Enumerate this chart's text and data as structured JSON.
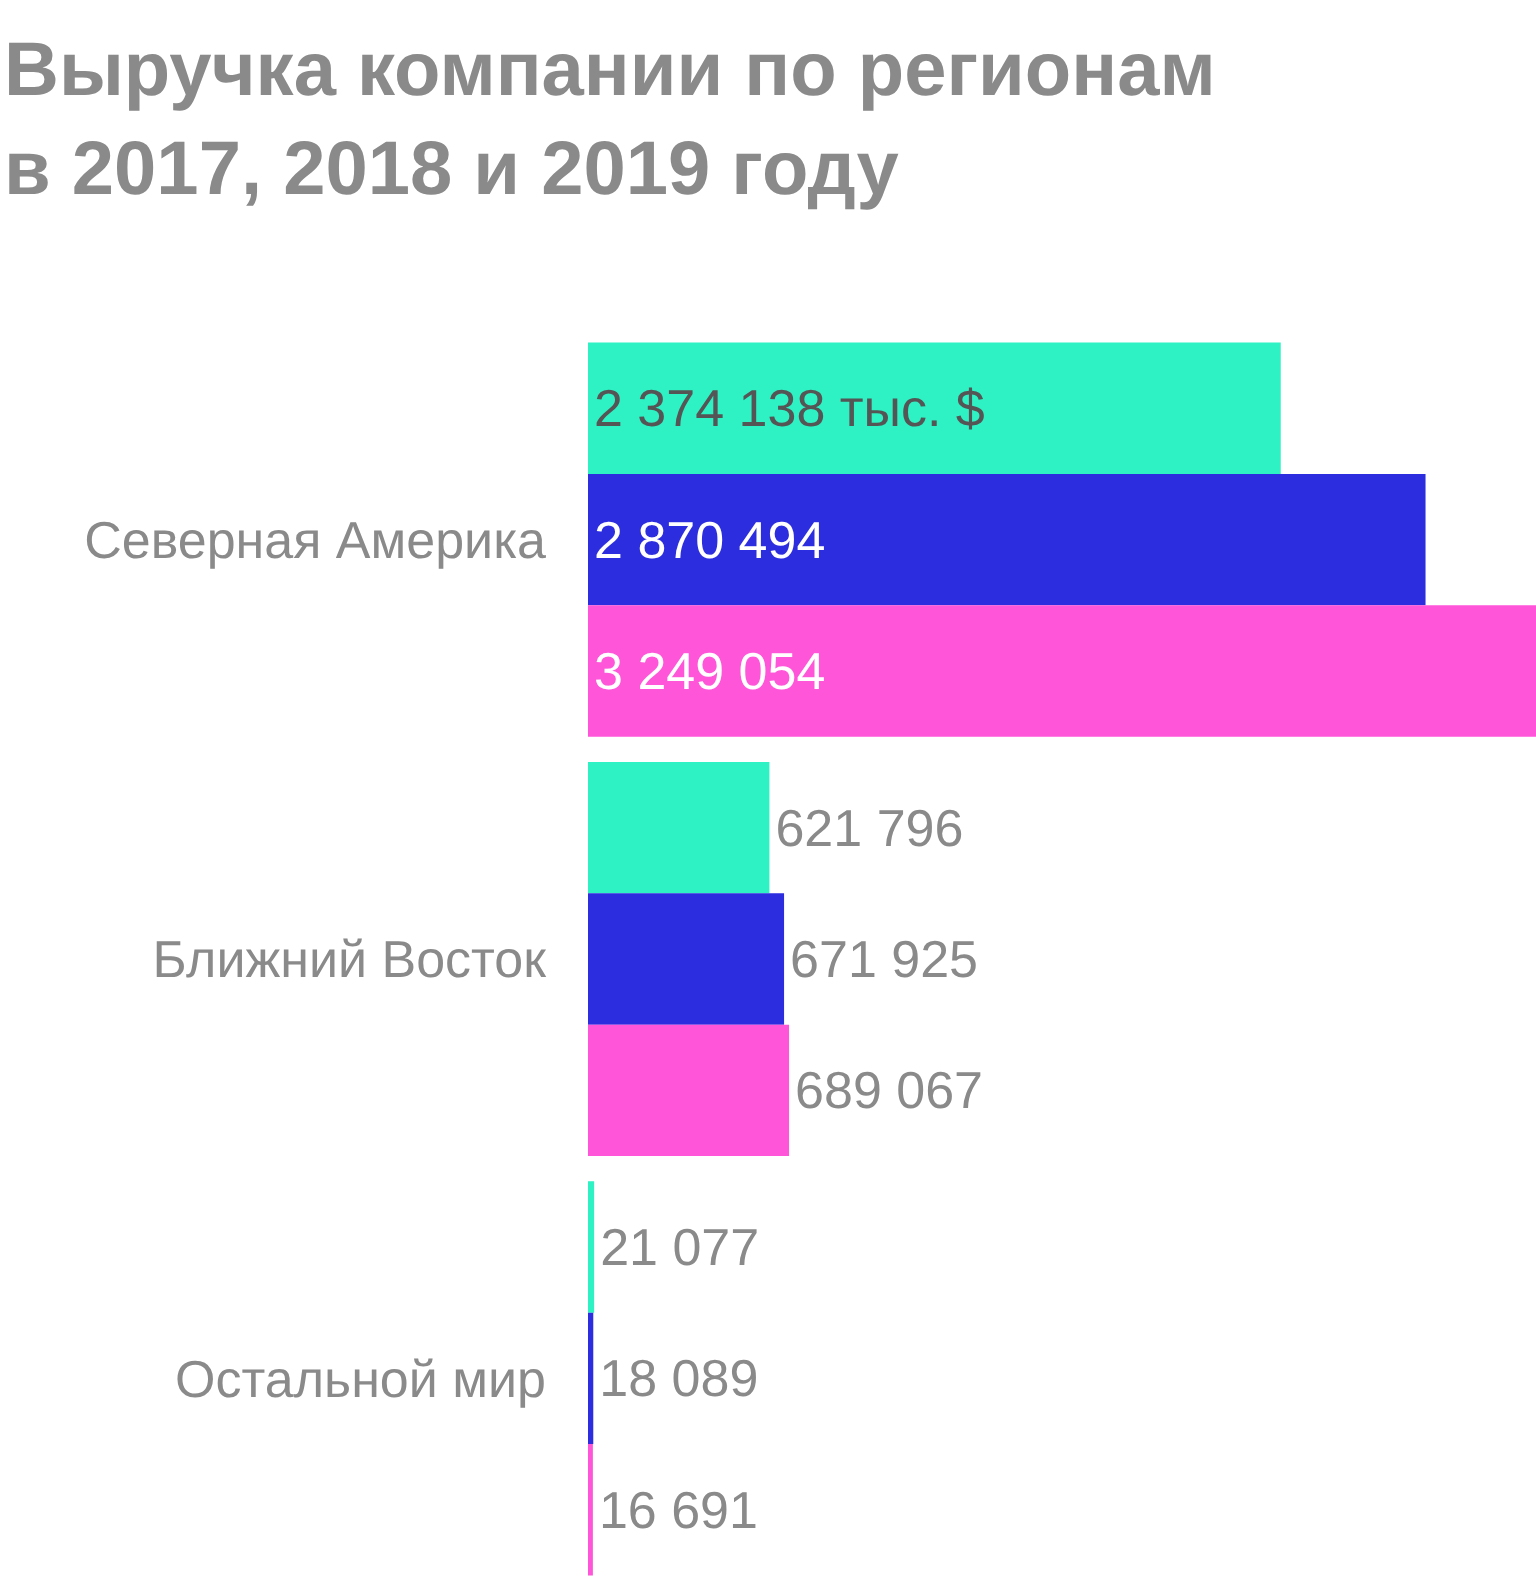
{
  "chart_data": {
    "type": "bar",
    "orientation": "horizontal",
    "title": "Выручка компании по регионам",
    "subtitle": "в 2017, 2018 и 2019 году",
    "categories": [
      "Северная Америка",
      "Ближний Восток",
      "Остальной мир"
    ],
    "xlim": [
      0,
      3249054
    ],
    "tick_labels": "y",
    "series": [
      {
        "color": "#2ef2c4",
        "values": [
          2374138,
          621796,
          21077
        ],
        "value_labels": [
          "2 374 138 тыс. $",
          "621 796",
          "21 077"
        ]
      },
      {
        "color": "#2d2de0",
        "values": [
          2870494,
          671925,
          18089
        ],
        "value_labels": [
          "2 870 494",
          "671 925",
          "18 089"
        ]
      },
      {
        "color": "#ff55d8",
        "values": [
          3249054,
          689067,
          16691
        ],
        "value_labels": [
          "3 249 054",
          "689 067",
          "16 691"
        ]
      }
    ]
  }
}
